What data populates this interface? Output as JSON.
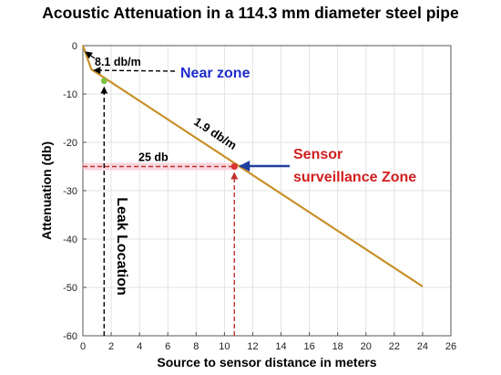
{
  "chart_data": {
    "type": "line",
    "title": "Acoustic Attenuation in a 114.3 mm diameter steel pipe",
    "xlabel": "Source to sensor distance in meters",
    "ylabel": "Attenuation (db)",
    "xlim": [
      0,
      26
    ],
    "ylim": [
      -60,
      0
    ],
    "xticks": [
      0,
      2,
      4,
      6,
      8,
      10,
      12,
      14,
      16,
      18,
      20,
      22,
      24,
      26
    ],
    "yticks": [
      0,
      -10,
      -20,
      -30,
      -40,
      -50,
      -60
    ],
    "grid": true,
    "series": [
      {
        "x": [
          0,
          0.6,
          24
        ],
        "y": [
          0,
          -4.9,
          -49.8
        ],
        "color": "#c8902a"
      }
    ],
    "markers": [
      {
        "x": 1.5,
        "y": -7.3,
        "color": "#7dc242"
      },
      {
        "x": 10.7,
        "y": -25,
        "color": "#d93030"
      }
    ],
    "annotations": {
      "near_zone_slope": "8.1 db/m",
      "near_zone": "Near zone",
      "main_slope": "1.9 db/m",
      "level": "25 db",
      "sensor_line1": "Sensor",
      "sensor_line2": "surveillance Zone",
      "leak": "Leak Location"
    },
    "colors": {
      "near_zone": "#1f2ccc",
      "sensor": "#d02020",
      "arrow_blue": "#1f3f9f",
      "dashed_red": "#c03030",
      "highlight": "#f6c6d2"
    }
  }
}
